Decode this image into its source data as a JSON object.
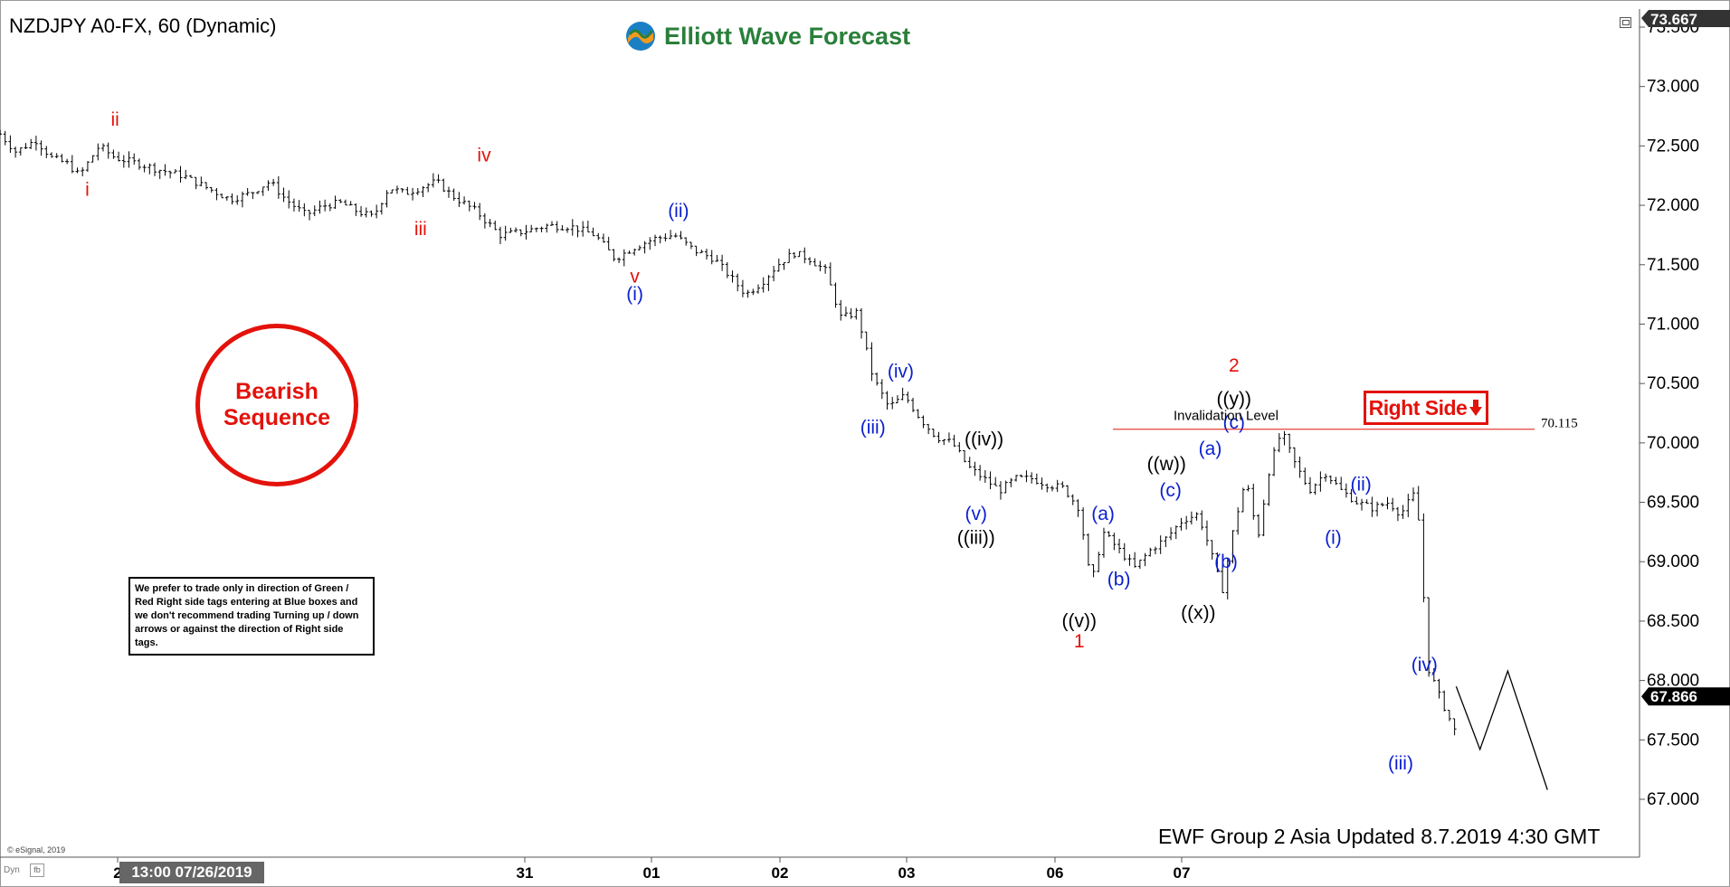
{
  "header": {
    "symbol_line": "NZDJPY A0-FX, 60 (Dynamic)",
    "logo_text": "Elliott Wave Forecast"
  },
  "badge": {
    "line1": "Bearish",
    "line2": "Sequence",
    "color": "#e3120b"
  },
  "note_text": "We prefer to trade only in direction of Green / Red Right side tags entering at Blue boxes and we don't recommend trading Turning up / down arrows or against the direction of Right side tags.",
  "right_side_tag": {
    "text": "Right Side",
    "icon": "down-arrow-icon",
    "color": "#e3120b"
  },
  "invalidation": {
    "label": "Invalidation Level",
    "value": "70.115",
    "level": 70.115
  },
  "footer_text": "EWF Group 2 Asia Updated 8.7.2019 4:30 GMT",
  "copyright": "© eSignal, 2019",
  "dyn_label": "Dyn",
  "dyn_box": "fb",
  "current_time_label": "13:00 07/26/2019",
  "colors": {
    "red": "#e3120b",
    "blue": "#0a1fd0",
    "black": "#000000",
    "logo_green": "#2a7f3a",
    "logo_blue": "#1b7fc4",
    "logo_orange": "#f39a1f"
  },
  "chart_data": {
    "type": "ohlc",
    "title": "NZDJPY A0-FX, 60 (Dynamic)",
    "x_tick_labels": [
      "2",
      "31",
      "01",
      "02",
      "03",
      "06",
      "07"
    ],
    "y_tick_labels": [
      "73.500",
      "73.000",
      "72.500",
      "72.000",
      "71.500",
      "71.000",
      "70.500",
      "70.000",
      "69.500",
      "69.000",
      "68.500",
      "68.000",
      "67.500",
      "67.000"
    ],
    "ylim": [
      66.7,
      73.6
    ],
    "grid": false,
    "price_high_tag": "73.667",
    "price_last_tag": "67.866",
    "price_last_value": 67.866,
    "price_path": [
      [
        0,
        72.6
      ],
      [
        0.4,
        72.45
      ],
      [
        0.9,
        72.55
      ],
      [
        1.3,
        72.4
      ],
      [
        1.7,
        72.35
      ],
      [
        2.0,
        72.25
      ],
      [
        2.5,
        72.5
      ],
      [
        2.9,
        72.4
      ],
      [
        3.5,
        72.35
      ],
      [
        4.0,
        72.3
      ],
      [
        4.6,
        72.25
      ],
      [
        5.2,
        72.15
      ],
      [
        5.8,
        72.05
      ],
      [
        6.3,
        72.1
      ],
      [
        6.8,
        72.2
      ],
      [
        7.2,
        72.05
      ],
      [
        7.7,
        71.92
      ],
      [
        8.2,
        72.0
      ],
      [
        8.6,
        72.02
      ],
      [
        9.0,
        71.95
      ],
      [
        9.4,
        71.9
      ],
      [
        9.8,
        72.15
      ],
      [
        10.2,
        72.1
      ],
      [
        10.6,
        72.15
      ],
      [
        11.0,
        72.2
      ],
      [
        11.4,
        72.08
      ],
      [
        12.0,
        71.95
      ],
      [
        12.6,
        71.75
      ],
      [
        13.2,
        71.78
      ],
      [
        13.8,
        71.83
      ],
      [
        14.4,
        71.82
      ],
      [
        15.0,
        71.75
      ],
      [
        15.5,
        71.55
      ],
      [
        16.0,
        71.65
      ],
      [
        16.5,
        71.72
      ],
      [
        17.0,
        71.75
      ],
      [
        17.5,
        71.62
      ],
      [
        18.0,
        71.55
      ],
      [
        18.4,
        71.4
      ],
      [
        18.8,
        71.25
      ],
      [
        19.2,
        71.35
      ],
      [
        19.6,
        71.5
      ],
      [
        20.0,
        71.6
      ],
      [
        20.4,
        71.55
      ],
      [
        20.8,
        71.45
      ],
      [
        21.2,
        71.05
      ],
      [
        21.6,
        71.1
      ],
      [
        22.0,
        70.55
      ],
      [
        22.4,
        70.3
      ],
      [
        22.8,
        70.4
      ],
      [
        23.2,
        70.2
      ],
      [
        23.6,
        70.05
      ],
      [
        24.0,
        70.0
      ],
      [
        24.4,
        69.8
      ],
      [
        24.8,
        69.7
      ],
      [
        25.2,
        69.6
      ],
      [
        25.6,
        69.7
      ],
      [
        26.0,
        69.7
      ],
      [
        26.4,
        69.65
      ],
      [
        26.8,
        69.62
      ],
      [
        27.2,
        69.45
      ],
      [
        27.5,
        68.8
      ],
      [
        27.8,
        69.25
      ],
      [
        28.2,
        69.1
      ],
      [
        28.6,
        68.95
      ],
      [
        29.0,
        69.1
      ],
      [
        29.4,
        69.2
      ],
      [
        29.8,
        69.35
      ],
      [
        30.2,
        69.4
      ],
      [
        30.5,
        69.1
      ],
      [
        30.8,
        68.75
      ],
      [
        31.1,
        69.3
      ],
      [
        31.4,
        69.7
      ],
      [
        31.7,
        69.2
      ],
      [
        32.0,
        69.8
      ],
      [
        32.3,
        70.1
      ],
      [
        32.6,
        69.85
      ],
      [
        33.0,
        69.6
      ],
      [
        33.4,
        69.75
      ],
      [
        33.8,
        69.6
      ],
      [
        34.2,
        69.5
      ],
      [
        34.6,
        69.45
      ],
      [
        35.0,
        69.5
      ],
      [
        35.3,
        69.4
      ],
      [
        35.7,
        69.6
      ],
      [
        36.0,
        68.1
      ],
      [
        36.3,
        67.85
      ],
      [
        36.7,
        67.55
      ]
    ],
    "projection": [
      [
        36.7,
        67.95
      ],
      [
        37.3,
        67.42
      ],
      [
        38.0,
        68.08
      ],
      [
        39.0,
        67.08
      ]
    ],
    "wave_labels": [
      {
        "text": "ii",
        "color": "red",
        "t": 2.9,
        "p": 72.67
      },
      {
        "text": "i",
        "color": "red",
        "t": 2.2,
        "p": 72.08
      },
      {
        "text": "iv",
        "color": "red",
        "t": 12.2,
        "p": 72.37
      },
      {
        "text": "iii",
        "color": "red",
        "t": 10.6,
        "p": 71.75
      },
      {
        "text": "v",
        "color": "red",
        "t": 16.0,
        "p": 71.35
      },
      {
        "text": "(i)",
        "color": "blue",
        "t": 16.0,
        "p": 71.2
      },
      {
        "text": "(ii)",
        "color": "blue",
        "t": 17.1,
        "p": 71.9
      },
      {
        "text": "(iv)",
        "color": "blue",
        "t": 22.7,
        "p": 70.55
      },
      {
        "text": "(iii)",
        "color": "blue",
        "t": 22.0,
        "p": 70.08
      },
      {
        "text": "((iv))",
        "color": "black",
        "t": 24.8,
        "p": 69.98
      },
      {
        "text": "(v)",
        "color": "blue",
        "t": 24.6,
        "p": 69.35
      },
      {
        "text": "((iii))",
        "color": "black",
        "t": 24.6,
        "p": 69.15
      },
      {
        "text": "(a)",
        "color": "blue",
        "t": 27.8,
        "p": 69.35
      },
      {
        "text": "(b)",
        "color": "blue",
        "t": 28.2,
        "p": 68.8
      },
      {
        "text": "((v))",
        "color": "black",
        "t": 27.2,
        "p": 68.45
      },
      {
        "text": "1",
        "color": "red",
        "t": 27.2,
        "p": 68.28
      },
      {
        "text": "((w))",
        "color": "black",
        "t": 29.4,
        "p": 69.77
      },
      {
        "text": "(c)",
        "color": "blue",
        "t": 29.5,
        "p": 69.55
      },
      {
        "text": "((x))",
        "color": "black",
        "t": 30.2,
        "p": 68.52
      },
      {
        "text": "(a)",
        "color": "blue",
        "t": 30.5,
        "p": 69.9
      },
      {
        "text": "(c)",
        "color": "blue",
        "t": 31.1,
        "p": 70.12
      },
      {
        "text": "((y))",
        "color": "black",
        "t": 31.1,
        "p": 70.32
      },
      {
        "text": "2",
        "color": "red",
        "t": 31.1,
        "p": 70.6
      },
      {
        "text": "(b)",
        "color": "blue",
        "t": 30.9,
        "p": 68.95
      },
      {
        "text": "(i)",
        "color": "blue",
        "t": 33.6,
        "p": 69.15
      },
      {
        "text": "(ii)",
        "color": "blue",
        "t": 34.3,
        "p": 69.6
      },
      {
        "text": "(iv)",
        "color": "blue",
        "t": 35.9,
        "p": 68.08
      },
      {
        "text": "(iii)",
        "color": "blue",
        "t": 35.3,
        "p": 67.25
      }
    ]
  }
}
